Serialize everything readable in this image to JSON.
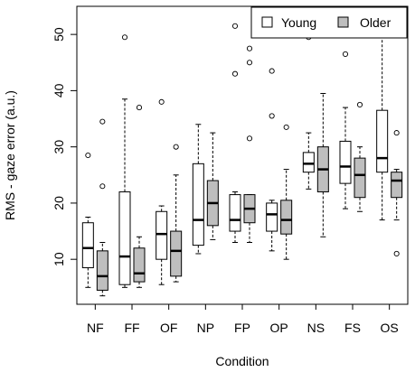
{
  "chart_data": {
    "type": "boxplot",
    "title": "",
    "xlabel": "Condition",
    "ylabel": "RMS - gaze error (a.u.)",
    "ylim": [
      2,
      55
    ],
    "yticks": [
      10,
      20,
      30,
      40,
      50
    ],
    "categories": [
      "NF",
      "FF",
      "OF",
      "NP",
      "FP",
      "OP",
      "NS",
      "FS",
      "OS"
    ],
    "legend": {
      "position": "top-right",
      "entries": [
        "Young",
        "Older"
      ]
    },
    "series": [
      {
        "name": "Young",
        "color": "#ffffff",
        "boxes": [
          {
            "whislo": 5.0,
            "q1": 8.5,
            "med": 12.0,
            "q3": 16.5,
            "whishi": 17.5,
            "outliers": [
              28.5
            ]
          },
          {
            "whislo": 5.0,
            "q1": 5.5,
            "med": 10.5,
            "q3": 22.0,
            "whishi": 38.5,
            "outliers": [
              49.5
            ]
          },
          {
            "whislo": 5.5,
            "q1": 10.0,
            "med": 14.5,
            "q3": 18.5,
            "whishi": 19.5,
            "outliers": [
              38.0
            ]
          },
          {
            "whislo": 11.0,
            "q1": 12.5,
            "med": 17.0,
            "q3": 27.0,
            "whishi": 34.0,
            "outliers": []
          },
          {
            "whislo": 13.0,
            "q1": 15.0,
            "med": 17.0,
            "q3": 21.5,
            "whishi": 22.0,
            "outliers": [
              43.0,
              51.5
            ]
          },
          {
            "whislo": 11.5,
            "q1": 15.0,
            "med": 18.0,
            "q3": 20.0,
            "whishi": 20.5,
            "outliers": [
              35.5,
              43.5
            ]
          },
          {
            "whislo": 22.5,
            "q1": 25.5,
            "med": 27.0,
            "q3": 29.0,
            "whishi": 32.5,
            "outliers": [
              49.5
            ]
          },
          {
            "whislo": 19.0,
            "q1": 23.5,
            "med": 26.5,
            "q3": 31.0,
            "whishi": 37.0,
            "outliers": [
              46.5
            ]
          },
          {
            "whislo": 17.0,
            "q1": 25.5,
            "med": 28.0,
            "q3": 36.5,
            "whishi": 51.0,
            "outliers": []
          }
        ]
      },
      {
        "name": "Older",
        "color": "#bebebe",
        "boxes": [
          {
            "whislo": 3.5,
            "q1": 4.5,
            "med": 7.0,
            "q3": 11.5,
            "whishi": 13.0,
            "outliers": [
              23.0,
              34.5
            ]
          },
          {
            "whislo": 5.0,
            "q1": 6.0,
            "med": 7.5,
            "q3": 12.0,
            "whishi": 14.0,
            "outliers": [
              37.0
            ]
          },
          {
            "whislo": 6.0,
            "q1": 7.0,
            "med": 11.5,
            "q3": 15.0,
            "whishi": 25.0,
            "outliers": [
              30.0
            ]
          },
          {
            "whislo": 13.5,
            "q1": 16.0,
            "med": 20.0,
            "q3": 24.0,
            "whishi": 32.5,
            "outliers": []
          },
          {
            "whislo": 13.0,
            "q1": 16.5,
            "med": 19.0,
            "q3": 21.5,
            "whishi": 21.5,
            "outliers": [
              31.5,
              45.0,
              47.5
            ]
          },
          {
            "whislo": 10.0,
            "q1": 14.5,
            "med": 17.0,
            "q3": 20.5,
            "whishi": 26.0,
            "outliers": [
              33.5
            ]
          },
          {
            "whislo": 14.0,
            "q1": 22.0,
            "med": 26.0,
            "q3": 30.0,
            "whishi": 39.5,
            "outliers": []
          },
          {
            "whislo": 18.5,
            "q1": 21.0,
            "med": 25.0,
            "q3": 28.0,
            "whishi": 30.0,
            "outliers": [
              37.5
            ]
          },
          {
            "whislo": 17.0,
            "q1": 21.0,
            "med": 24.0,
            "q3": 25.5,
            "whishi": 26.0,
            "outliers": [
              11.0,
              32.5
            ]
          }
        ]
      }
    ]
  }
}
